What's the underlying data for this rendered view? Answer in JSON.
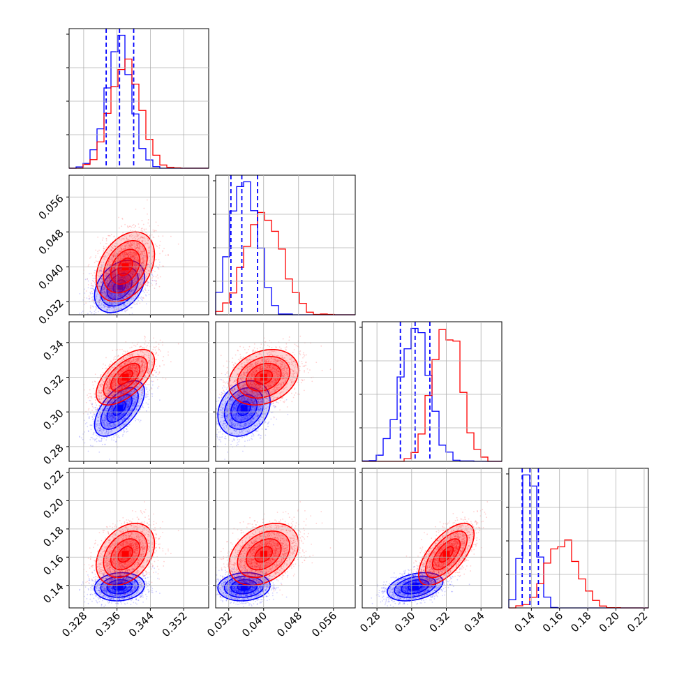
{
  "chart_data": {
    "type": "corner",
    "parameters": [
      "",
      "",
      "",
      ""
    ],
    "series": [
      {
        "color": "#0000ff",
        "mean": [
          0.3366,
          0.0355,
          0.302,
          0.139
        ],
        "sd": [
          0.003,
          0.003,
          0.008,
          0.005
        ],
        "corr": [
          [
            1,
            0.35,
            0.6,
            0.1
          ],
          [
            0.35,
            1,
            0.25,
            0.1
          ],
          [
            0.6,
            0.25,
            1,
            0.35
          ],
          [
            0.1,
            0.1,
            0.35,
            1
          ]
        ],
        "quantiles": [
          [
            0.3334,
            0.3366,
            0.34
          ],
          [
            0.0325,
            0.035,
            0.0386
          ],
          [
            0.2935,
            0.302,
            0.3105
          ],
          [
            0.1335,
            0.139,
            0.145
          ]
        ]
      },
      {
        "color": "#ff0000",
        "mean": [
          0.338,
          0.04,
          0.32,
          0.162
        ],
        "sd": [
          0.0035,
          0.004,
          0.008,
          0.011
        ],
        "corr": [
          [
            1,
            0.35,
            0.6,
            0.35
          ],
          [
            0.35,
            1,
            0.25,
            0.35
          ],
          [
            0.6,
            0.25,
            1,
            0.65
          ],
          [
            0.35,
            0.35,
            0.65,
            1
          ]
        ]
      }
    ],
    "ranges": [
      [
        0.3245,
        0.358
      ],
      [
        0.029,
        0.061
      ],
      [
        0.2715,
        0.352
      ],
      [
        0.124,
        0.223
      ]
    ],
    "ticks": [
      [
        "0.328",
        "0.336",
        "0.344",
        "0.352"
      ],
      [
        "0.032",
        "0.040",
        "0.048",
        "0.056"
      ],
      [
        "0.28",
        "0.30",
        "0.32",
        "0.34"
      ],
      [
        "0.14",
        "0.16",
        "0.18",
        "0.20",
        "0.22"
      ]
    ],
    "contour_levels_sigma": [
      0.5,
      1.0,
      1.5,
      2.0
    ],
    "quantile_lines": "blue dashed at 16th, 50th and 84th percentiles",
    "grid": true
  }
}
